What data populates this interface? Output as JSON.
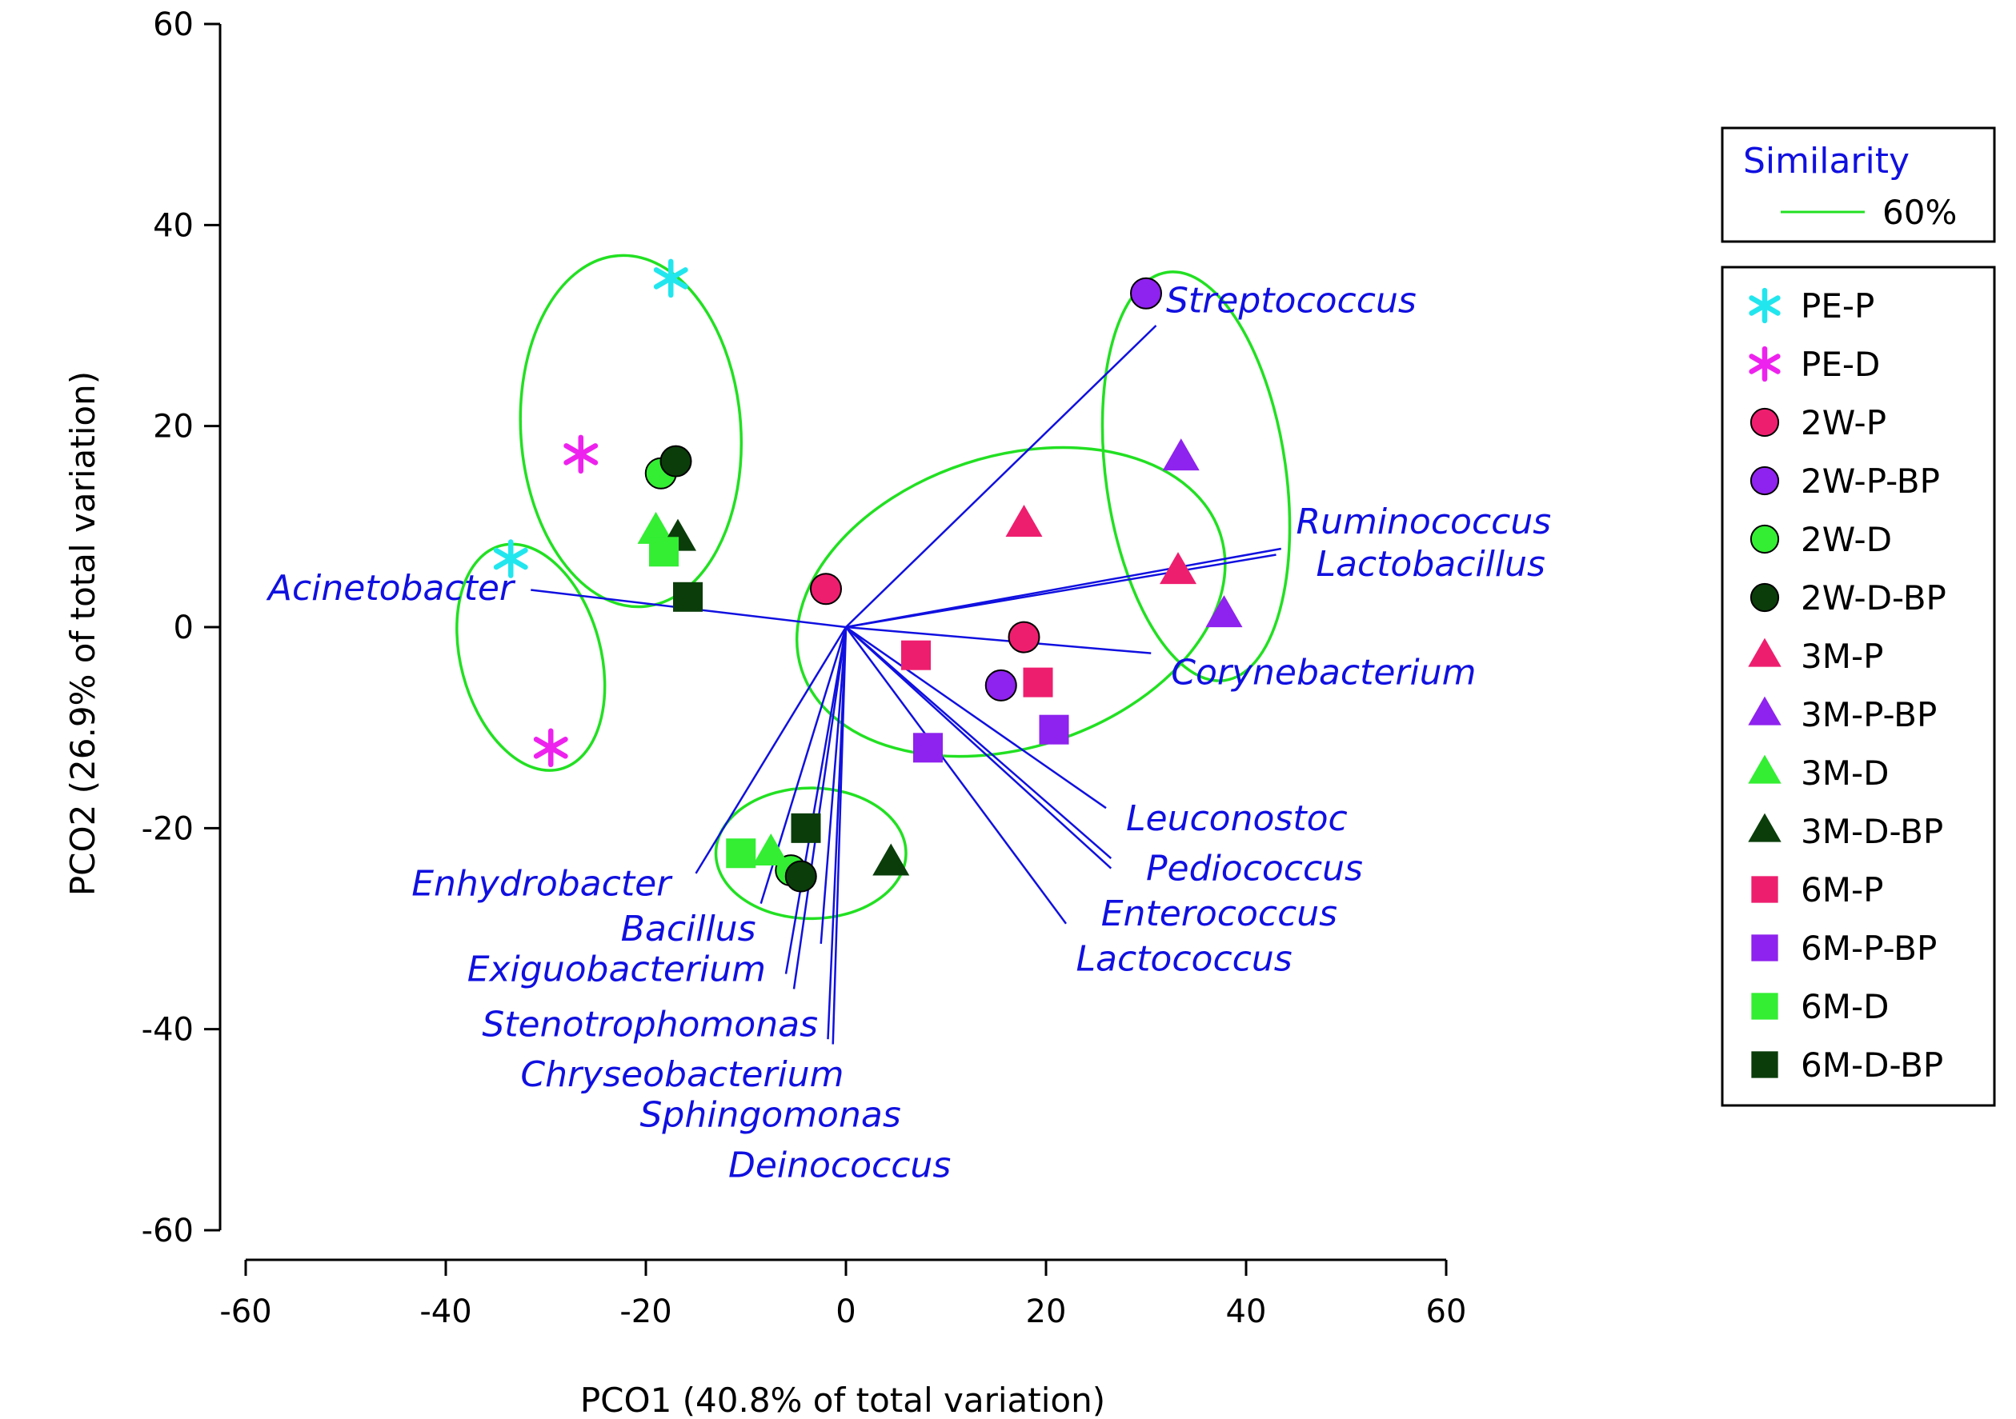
{
  "chart_data": {
    "type": "scatter",
    "xlabel": "PCO1 (40.8% of total variation)",
    "ylabel": "PCO2 (26.9% of total variation)",
    "xlim": [
      -60,
      60
    ],
    "ylim": [
      -60,
      60
    ],
    "x_ticks": [
      {
        "value": -60,
        "label": "-60"
      },
      {
        "value": -40,
        "label": "-40"
      },
      {
        "value": -20,
        "label": "-20"
      },
      {
        "value": 0,
        "label": "0"
      },
      {
        "value": 20,
        "label": "20"
      },
      {
        "value": 40,
        "label": "40"
      },
      {
        "value": 60,
        "label": "60"
      }
    ],
    "y_ticks": [
      {
        "value": -60,
        "label": "-60"
      },
      {
        "value": -40,
        "label": "-40"
      },
      {
        "value": -20,
        "label": "-20"
      },
      {
        "value": 0,
        "label": "0"
      },
      {
        "value": 20,
        "label": "20"
      },
      {
        "value": 40,
        "label": "40"
      },
      {
        "value": 60,
        "label": "60"
      }
    ],
    "grid": false,
    "legend_position": "right",
    "similarity_legend": {
      "title": "Similarity",
      "entry": "60%",
      "color": "#22e022"
    },
    "series": [
      {
        "name": "PE-P",
        "marker": "asterisk",
        "color": "#22e6ee",
        "points": [
          [
            -17.5,
            34.7
          ],
          [
            -33.5,
            6.8
          ]
        ]
      },
      {
        "name": "PE-D",
        "marker": "asterisk",
        "color": "#ee22ee",
        "points": [
          [
            -26.5,
            17.2
          ],
          [
            -29.5,
            -12.0
          ]
        ]
      },
      {
        "name": "2W-P",
        "marker": "circle",
        "color": "#ee1e6e",
        "points": [
          [
            -2.0,
            3.8
          ],
          [
            17.8,
            -1.0
          ]
        ]
      },
      {
        "name": "2W-P-BP",
        "marker": "circle",
        "color": "#8e22ee",
        "points": [
          [
            30.0,
            33.2
          ],
          [
            15.5,
            -5.8
          ]
        ]
      },
      {
        "name": "2W-D",
        "marker": "circle",
        "color": "#33ee33",
        "points": [
          [
            -18.5,
            15.3
          ],
          [
            -5.5,
            -24.2
          ]
        ]
      },
      {
        "name": "2W-D-BP",
        "marker": "circle",
        "color": "#0a3d0a",
        "points": [
          [
            -17.0,
            16.5
          ],
          [
            -4.5,
            -24.8
          ]
        ]
      },
      {
        "name": "3M-P",
        "marker": "triangle",
        "color": "#ee1e6e",
        "points": [
          [
            17.8,
            10.2
          ],
          [
            33.2,
            5.5
          ]
        ]
      },
      {
        "name": "3M-P-BP",
        "marker": "triangle",
        "color": "#8e22ee",
        "points": [
          [
            33.5,
            16.8
          ],
          [
            37.8,
            1.2
          ]
        ]
      },
      {
        "name": "3M-D",
        "marker": "triangle",
        "color": "#33ee33",
        "points": [
          [
            -19.0,
            9.5
          ],
          [
            -7.5,
            -22.5
          ]
        ]
      },
      {
        "name": "3M-D-BP",
        "marker": "triangle",
        "color": "#0a3d0a",
        "points": [
          [
            -16.8,
            8.8
          ],
          [
            4.5,
            -23.5
          ]
        ]
      },
      {
        "name": "6M-P",
        "marker": "square",
        "color": "#ee1e6e",
        "points": [
          [
            7.0,
            -2.8
          ],
          [
            19.2,
            -5.5
          ]
        ]
      },
      {
        "name": "6M-P-BP",
        "marker": "square",
        "color": "#8e22ee",
        "points": [
          [
            8.2,
            -12.0
          ],
          [
            20.8,
            -10.2
          ]
        ]
      },
      {
        "name": "6M-D",
        "marker": "square",
        "color": "#33ee33",
        "points": [
          [
            -18.2,
            7.5
          ],
          [
            -10.5,
            -22.5
          ]
        ]
      },
      {
        "name": "6M-D-BP",
        "marker": "square",
        "color": "#0a3d0a",
        "points": [
          [
            -15.8,
            3.0
          ],
          [
            -4.0,
            -20.0
          ]
        ]
      }
    ],
    "vectors": [
      {
        "label": "Streptococcus",
        "end": [
          31.0,
          30.0
        ],
        "label_at": [
          32.0,
          32.5
        ],
        "anchor": "start"
      },
      {
        "label": "Ruminococcus",
        "end": [
          43.5,
          7.8
        ],
        "label_at": [
          45.0,
          10.5
        ],
        "anchor": "start"
      },
      {
        "label": "Lactobacillus",
        "end": [
          43.0,
          7.2
        ],
        "label_at": [
          47.0,
          6.3
        ],
        "anchor": "start"
      },
      {
        "label": "Acinetobacter",
        "end": [
          -31.5,
          3.7
        ],
        "label_at": [
          -33.2,
          3.9
        ],
        "anchor": "end"
      },
      {
        "label": "Corynebacterium",
        "end": [
          30.5,
          -2.6
        ],
        "label_at": [
          32.5,
          -4.5
        ],
        "anchor": "start"
      },
      {
        "label": "Leuconostoc",
        "end": [
          26.0,
          -18.0
        ],
        "label_at": [
          28.0,
          -19.0
        ],
        "anchor": "start"
      },
      {
        "label": "Pediococcus",
        "end": [
          26.5,
          -23.0
        ],
        "label_at": [
          30.0,
          -24.0
        ],
        "anchor": "start"
      },
      {
        "label": "Enterococcus",
        "end": [
          26.5,
          -24.0
        ],
        "label_at": [
          25.5,
          -28.5
        ],
        "anchor": "start"
      },
      {
        "label": "Lactococcus",
        "end": [
          22.0,
          -29.5
        ],
        "label_at": [
          23.0,
          -33.0
        ],
        "anchor": "start"
      },
      {
        "label": "Enhydrobacter",
        "end": [
          -15.0,
          -24.5
        ],
        "label_at": [
          -17.5,
          -25.5
        ],
        "anchor": "end"
      },
      {
        "label": "Bacillus",
        "end": [
          -8.5,
          -27.5
        ],
        "label_at": [
          -9.0,
          -30.0
        ],
        "anchor": "end"
      },
      {
        "label": "Exiguobacterium",
        "end": [
          -6.0,
          -34.5
        ],
        "label_at": [
          -8.0,
          -34.0
        ],
        "anchor": "end"
      },
      {
        "label": "Stenotrophomonas",
        "end": [
          -5.2,
          -36.0
        ],
        "label_at": [
          -2.8,
          -39.5
        ],
        "anchor": "end"
      },
      {
        "label": "Chryseobacterium",
        "end": [
          -2.5,
          -31.5
        ],
        "label_at": [
          -0.2,
          -44.5
        ],
        "anchor": "end"
      },
      {
        "label": "Sphingomonas",
        "end": [
          -1.8,
          -41.0
        ],
        "label_at": [
          5.5,
          -48.5
        ],
        "anchor": "end"
      },
      {
        "label": "Deinococcus",
        "end": [
          -1.3,
          -41.5
        ],
        "label_at": [
          10.5,
          -53.5
        ],
        "anchor": "end"
      }
    ],
    "similarity_ellipses": [
      {
        "center": [
          -21.5,
          19.5
        ],
        "rx": 11.0,
        "ry": 17.5,
        "angle": -4
      },
      {
        "center": [
          -31.5,
          -3.0
        ],
        "rx": 7.0,
        "ry": 11.5,
        "angle": -15
      },
      {
        "center": [
          -3.5,
          -22.5
        ],
        "rx": 9.5,
        "ry": 6.5,
        "angle": 0
      },
      {
        "center": [
          16.5,
          2.5
        ],
        "rx": 22.0,
        "ry": 14.5,
        "angle": -18
      },
      {
        "center": [
          35.0,
          15.0
        ],
        "rx": 9.0,
        "ry": 20.5,
        "angle": -8
      }
    ]
  }
}
